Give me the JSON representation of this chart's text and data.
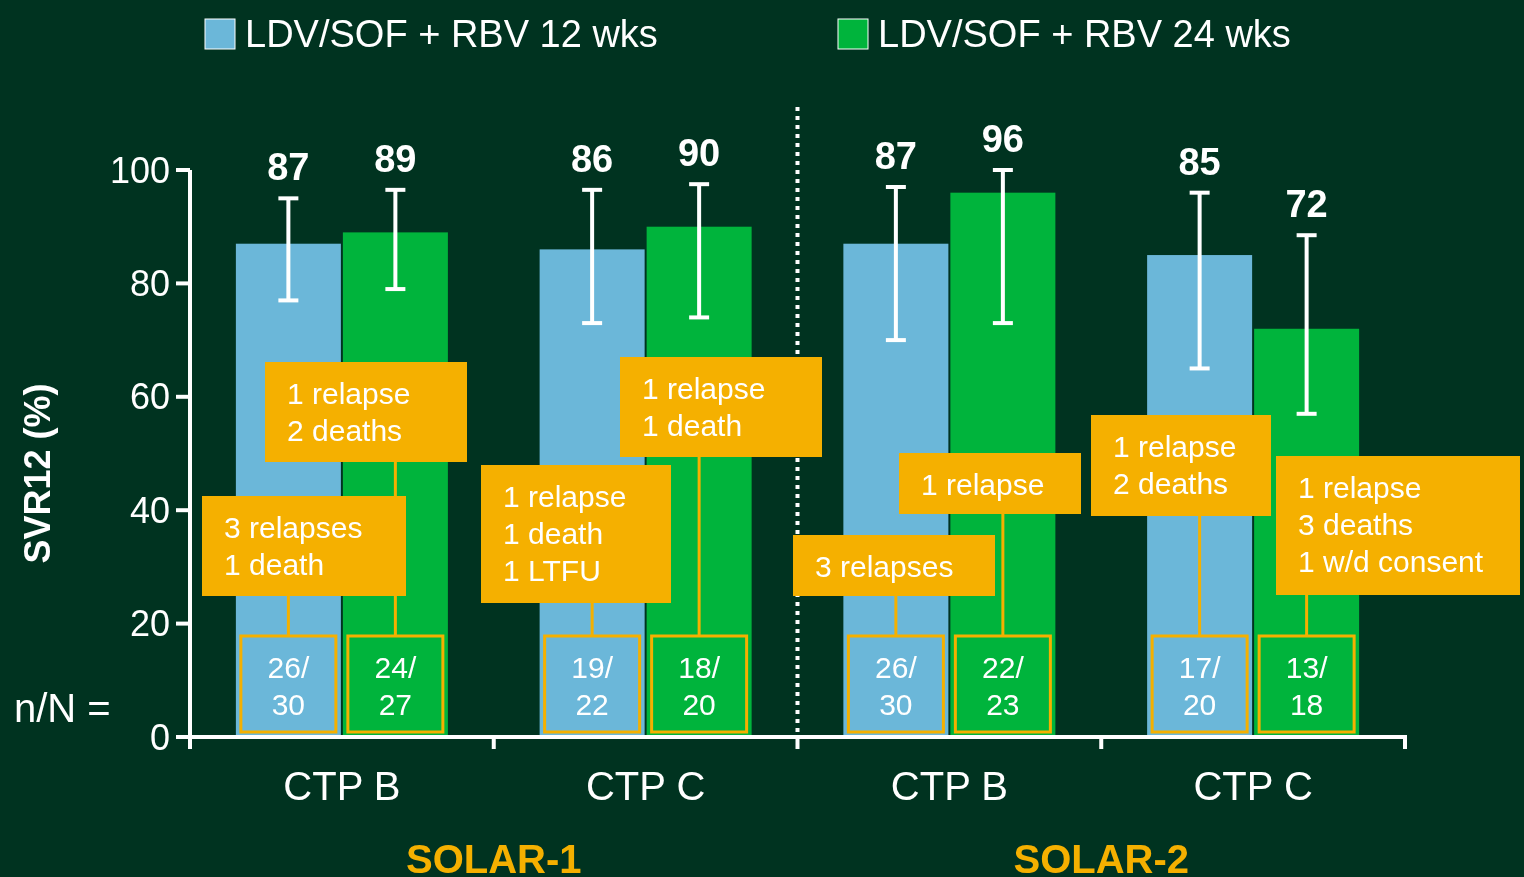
{
  "chart_data": {
    "type": "bar",
    "ylabel": "SVR12 (%)",
    "categories": [
      "CTP B",
      "CTP C",
      "CTP B",
      "CTP C"
    ],
    "series": [
      {
        "name": "LDV/SOF + RBV 12 wks",
        "color": "#6bb7d9",
        "values": [
          87,
          86,
          87,
          85
        ],
        "errors": [
          [
            77,
            95
          ],
          [
            73,
            96.5
          ],
          [
            70,
            97
          ],
          [
            65,
            96
          ]
        ]
      },
      {
        "name": "LDV/SOF + RBV 24 wks",
        "color": "#00b43c",
        "values": [
          89,
          90,
          96,
          72
        ],
        "errors": [
          [
            79,
            96.5
          ],
          [
            74,
            97.5
          ],
          [
            73,
            100
          ],
          [
            57,
            88.5
          ]
        ]
      }
    ],
    "ylim": [
      0,
      100
    ],
    "yticks": [
      0,
      20,
      40,
      60,
      80,
      100
    ],
    "data_labels": true,
    "legend": "top",
    "grid": false,
    "annotations": [
      "SOLAR-1",
      "SOLAR-2",
      "n/N =",
      "26/\n30",
      "19/\n22",
      "26/\n30",
      "17/\n20",
      "24/\n27",
      "18/\n20",
      "22/\n23",
      "13/\n18",
      "3 relapses\n1 death",
      "1 relapse\n1 death\n1 LTFU",
      "3 relapses",
      "1 relapse\n2 deaths",
      "1 relapse\n2 deaths",
      "1 relapse\n1 death",
      "1 relapse",
      "1 relapse\n3 deaths\n1 w/d consent"
    ]
  }
}
